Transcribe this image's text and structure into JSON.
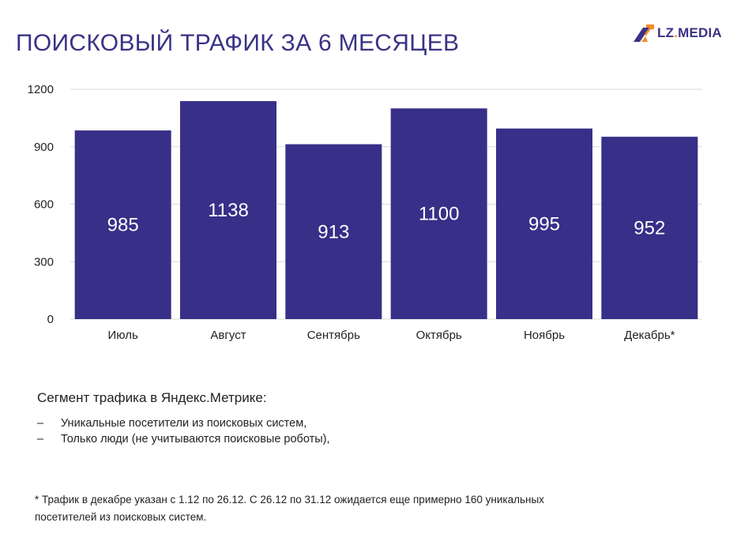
{
  "header": {
    "title": "ПОИСКОВЫЙ ТРАФИК ЗА 6 МЕСЯЦЕВ",
    "logo_text_a": "LZ",
    "logo_text_dot": ".",
    "logo_text_b": "MEDIA"
  },
  "colors": {
    "bar": "#372f88",
    "title": "#3a3286",
    "logo_accent": "#f28c28",
    "grid": "#d9d9d9"
  },
  "chart_data": {
    "type": "bar",
    "categories": [
      "Июль",
      "Август",
      "Сентябрь",
      "Октябрь",
      "Ноябрь",
      "Декабрь*"
    ],
    "values": [
      985,
      1138,
      913,
      1100,
      995,
      952
    ],
    "title": "ПОИСКОВЫЙ ТРАФИК ЗА 6 МЕСЯЦЕВ",
    "xlabel": "",
    "ylabel": "",
    "ylim": [
      0,
      1200
    ],
    "yticks": [
      0,
      300,
      600,
      900,
      1200
    ],
    "grid": true,
    "data_labels": true,
    "legend": "none"
  },
  "segment": {
    "title": "Сегмент трафика в Яндекс.Метрике:",
    "items": [
      "Уникальные посетители из поисковых систем,",
      "Только люди (не учитываются поисковые роботы),"
    ]
  },
  "footnote": {
    "line1": "* Трафик в декабре указан с 1.12 по 26.12. С 26.12 по 31.12 ожидается еще примерно 160 уникальных",
    "line2": "посетителей из поисковых систем."
  }
}
